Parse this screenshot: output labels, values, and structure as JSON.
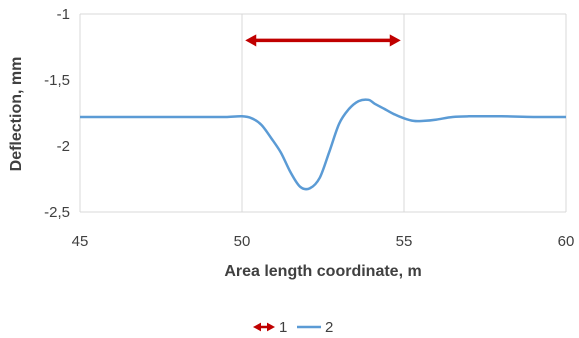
{
  "chart_data": {
    "type": "line",
    "xlabel": "Area length coordinate, m",
    "ylabel": "Deflection, mm",
    "xlim": [
      45,
      60
    ],
    "ylim": [
      -2.5,
      -1
    ],
    "x_ticks": [
      45,
      50,
      55,
      60
    ],
    "y_ticks": [
      -1,
      -1.5,
      -2,
      -2.5
    ],
    "x_tick_labels": [
      "45",
      "50",
      "55",
      "60"
    ],
    "y_tick_labels": [
      "-1",
      "-1,5",
      "-2",
      "-2,5"
    ],
    "grid": "vertical",
    "legend_position": "bottom",
    "series": [
      {
        "name": "1",
        "kind": "double-arrow",
        "color": "#c00000",
        "x": [
          50.1,
          54.9
        ],
        "y": [
          -1.2,
          -1.2
        ]
      },
      {
        "name": "2",
        "kind": "line",
        "color": "#5b9bd5",
        "x": [
          45,
          46,
          47,
          48,
          49,
          49.5,
          50,
          50.3,
          50.6,
          50.9,
          51.2,
          51.5,
          51.8,
          52.1,
          52.4,
          52.7,
          53.0,
          53.3,
          53.6,
          53.9,
          54.1,
          54.4,
          54.7,
          55.0,
          55.3,
          55.6,
          56.0,
          56.5,
          57.0,
          58.0,
          59.0,
          60.0
        ],
        "y": [
          -1.78,
          -1.78,
          -1.78,
          -1.78,
          -1.78,
          -1.78,
          -1.775,
          -1.79,
          -1.84,
          -1.94,
          -2.05,
          -2.2,
          -2.31,
          -2.32,
          -2.24,
          -2.04,
          -1.83,
          -1.72,
          -1.66,
          -1.65,
          -1.68,
          -1.72,
          -1.76,
          -1.79,
          -1.81,
          -1.81,
          -1.8,
          -1.78,
          -1.775,
          -1.775,
          -1.78,
          -1.78
        ]
      }
    ]
  }
}
